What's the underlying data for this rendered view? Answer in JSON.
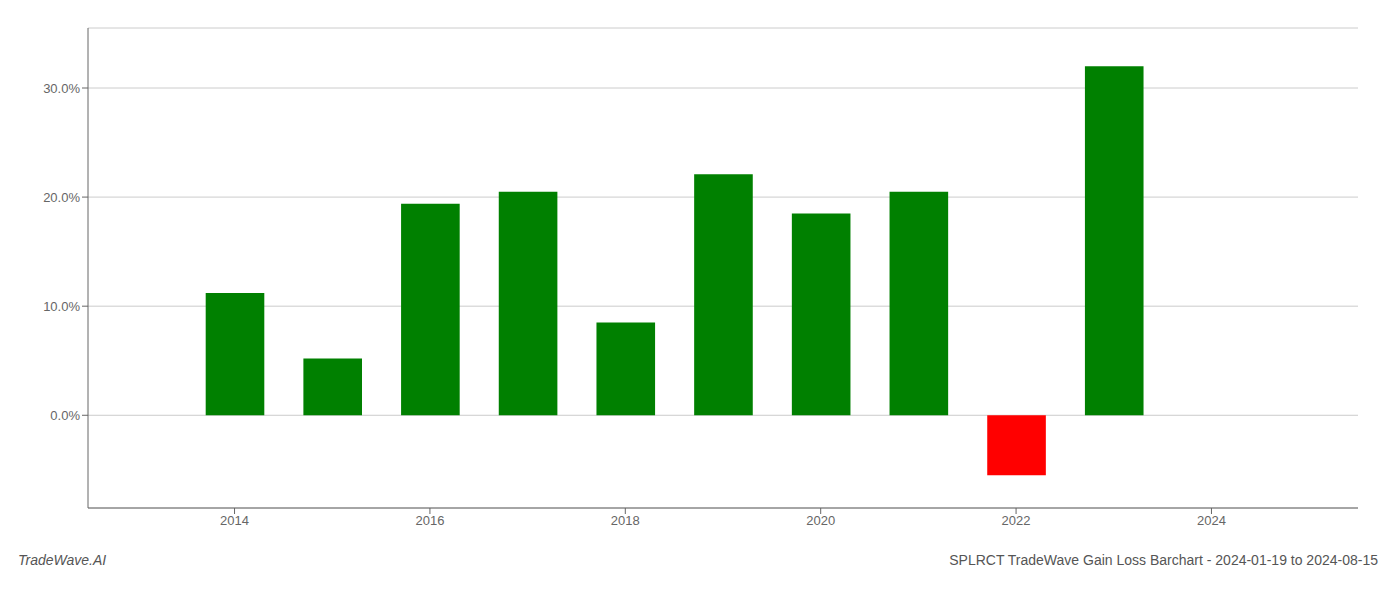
{
  "chart_data": {
    "type": "bar",
    "title": "SPLRCT TradeWave Gain Loss Barchart - 2024-01-19 to 2024-08-15",
    "annotations": [
      "TradeWave.AI"
    ],
    "x": [
      2014,
      2015,
      2016,
      2017,
      2018,
      2019,
      2020,
      2021,
      2022,
      2023
    ],
    "values": [
      0.112,
      0.052,
      0.194,
      0.205,
      0.085,
      0.221,
      0.185,
      0.205,
      -0.055,
      0.32
    ],
    "colors": [
      "#008000",
      "#008000",
      "#008000",
      "#008000",
      "#008000",
      "#008000",
      "#008000",
      "#008000",
      "#ff0000",
      "#008000"
    ],
    "xlim": [
      2012.5,
      2025.5
    ],
    "xticks": [
      2014,
      2016,
      2018,
      2020,
      2022,
      2024
    ],
    "ylim": [
      -0.085,
      0.355
    ],
    "yticks": [
      {
        "value": 0.0,
        "label": "0.0%"
      },
      {
        "value": 0.1,
        "label": "10.0%"
      },
      {
        "value": 0.2,
        "label": "20.0%"
      },
      {
        "value": 0.3,
        "label": "30.0%"
      }
    ],
    "grid": true
  }
}
